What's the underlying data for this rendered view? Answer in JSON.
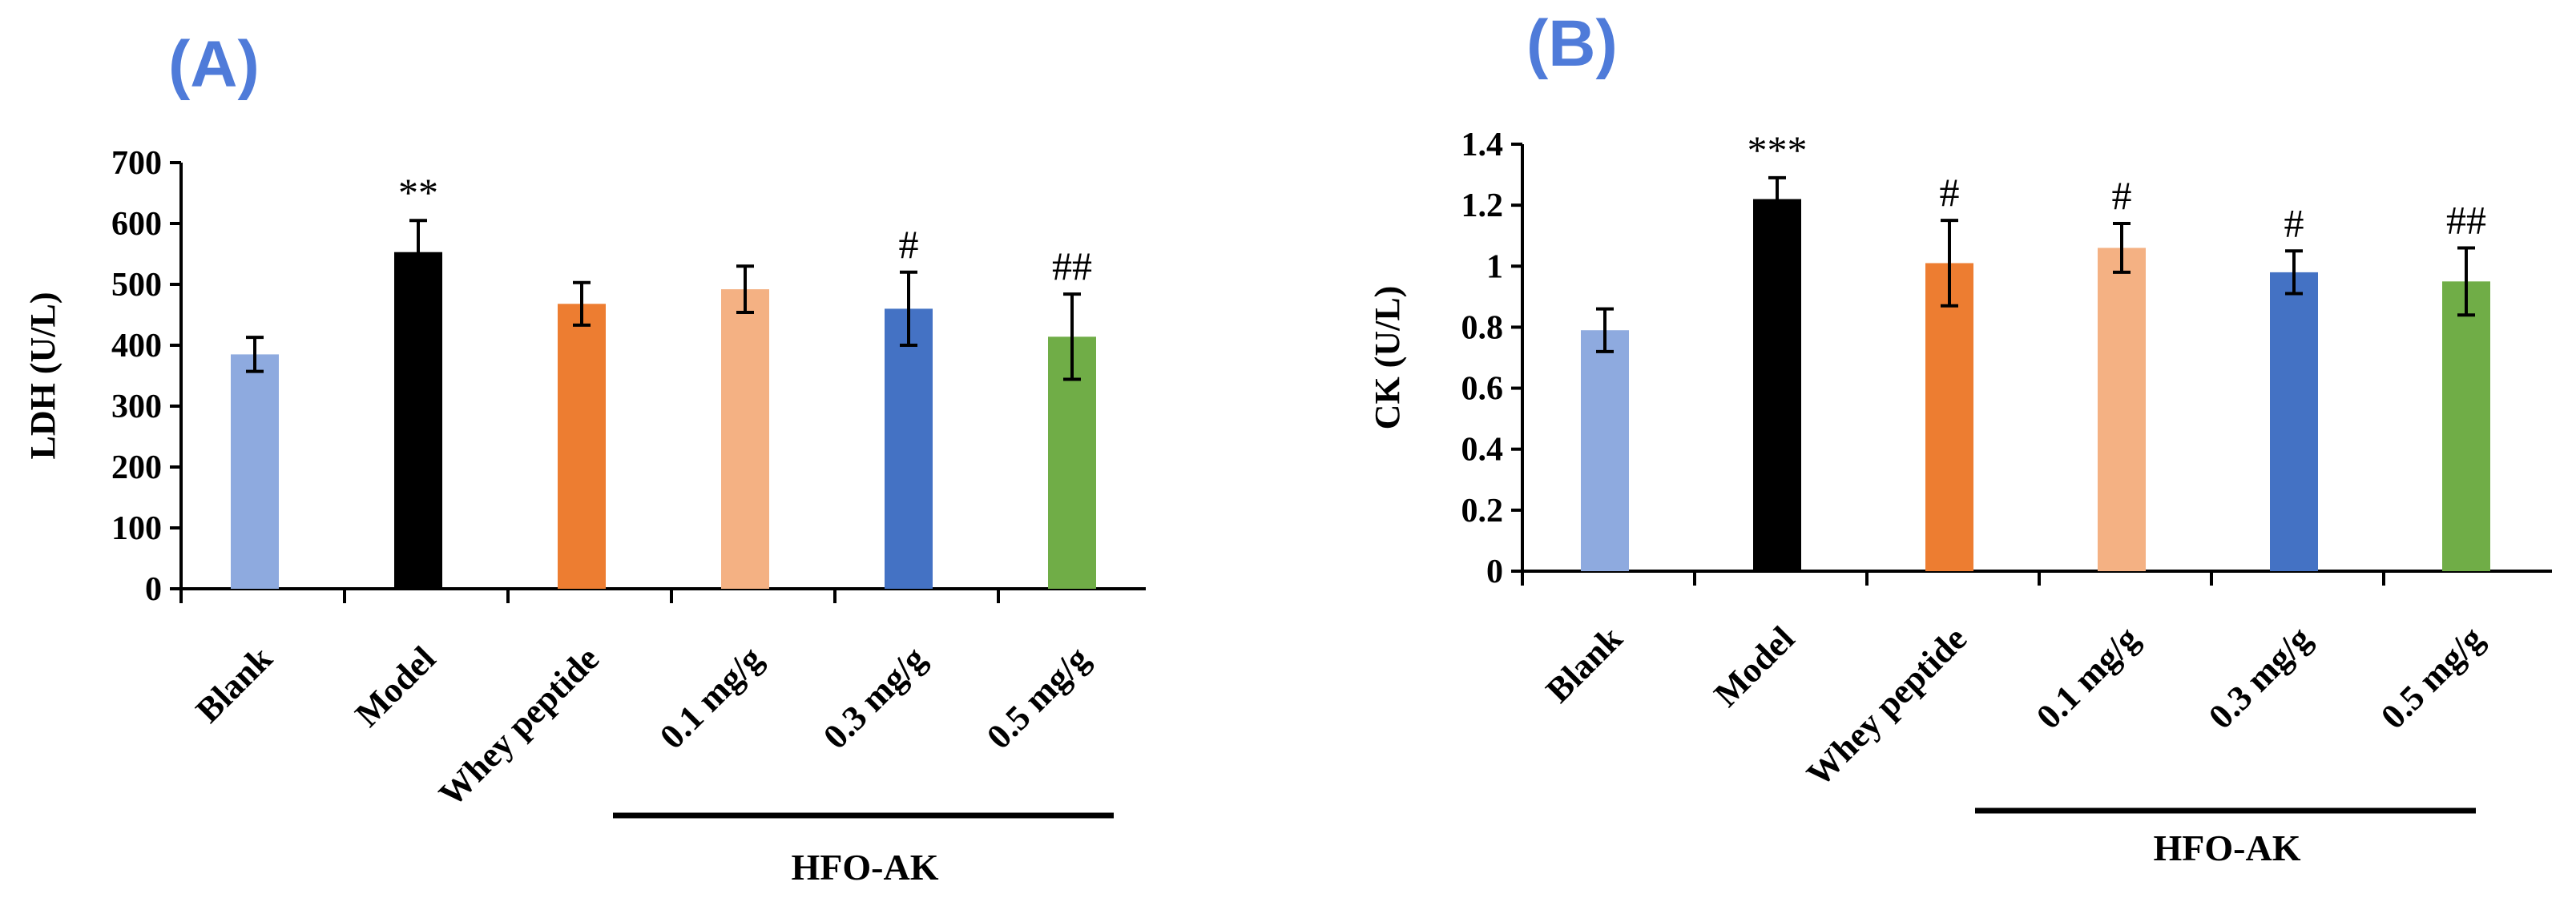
{
  "chart_data": [
    {
      "type": "bar",
      "panel_label": "(A)",
      "ylabel": "LDH (U/L)",
      "ylim": [
        0,
        700
      ],
      "yticks": [
        "0",
        "100",
        "200",
        "300",
        "400",
        "500",
        "600",
        "700"
      ],
      "categories": [
        "Blank",
        "Model",
        "Whey peptide",
        "0.1 mg/g",
        "0.3 mg/g",
        "0.5 mg/g"
      ],
      "values": [
        385,
        553,
        468,
        492,
        460,
        414
      ],
      "errors": [
        28,
        52,
        35,
        38,
        60,
        70
      ],
      "colors": [
        "#8eaadf",
        "#000000",
        "#ed7d31",
        "#f4b183",
        "#4472c4",
        "#70ad47"
      ],
      "significance": [
        "",
        "**",
        "",
        "",
        "#",
        "##"
      ],
      "group_label": "HFO-AK"
    },
    {
      "type": "bar",
      "panel_label": "(B)",
      "ylabel": "CK (U/L)",
      "ylim": [
        0,
        1.4
      ],
      "yticks": [
        "0",
        "0.2",
        "0.4",
        "0.6",
        "0.8",
        "1",
        "1.2",
        "1.4"
      ],
      "categories": [
        "Blank",
        "Model",
        "Whey peptide",
        "0.1 mg/g",
        "0.3 mg/g",
        "0.5 mg/g"
      ],
      "values": [
        0.79,
        1.22,
        1.01,
        1.06,
        0.98,
        0.95
      ],
      "errors": [
        0.07,
        0.07,
        0.14,
        0.08,
        0.07,
        0.11
      ],
      "colors": [
        "#8eaadf",
        "#000000",
        "#ed7d31",
        "#f4b183",
        "#4472c4",
        "#70ad47"
      ],
      "significance": [
        "",
        "***",
        "#",
        "#",
        "#",
        "##"
      ],
      "group_label": "HFO-AK"
    }
  ]
}
